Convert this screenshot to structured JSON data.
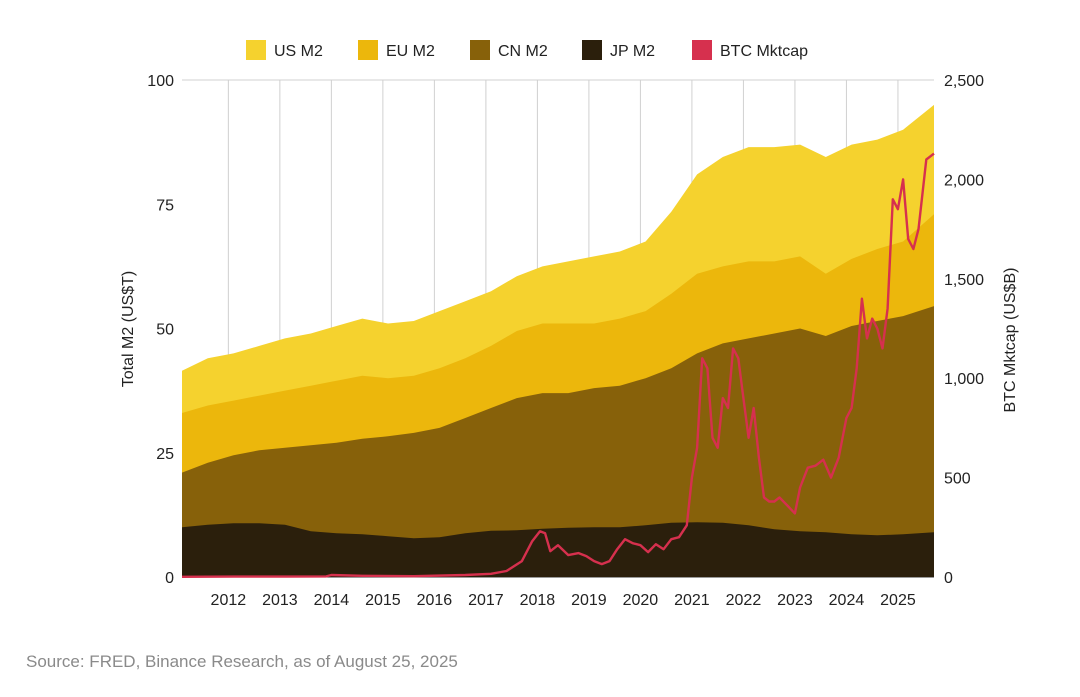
{
  "source": "Source: FRED, Binance Research, as of August 25, 2025",
  "chart_data": {
    "type": "area",
    "stacked": true,
    "xlim": [
      2011.0,
      2025.6
    ],
    "ylim": [
      0,
      100
    ],
    "y2lim": [
      0,
      2500
    ],
    "ylabel": "Total M2 (US$T)",
    "y2label": "BTC Mktcap (US$B)",
    "xticks": [
      "2012",
      "2013",
      "2014",
      "2015",
      "2016",
      "2017",
      "2018",
      "2019",
      "2020",
      "2021",
      "2022",
      "2023",
      "2024",
      "2025"
    ],
    "xtick_values": [
      2011.9,
      2012.9,
      2013.9,
      2014.9,
      2015.9,
      2016.9,
      2017.9,
      2018.9,
      2019.9,
      2020.9,
      2021.9,
      2022.9,
      2023.9,
      2024.9
    ],
    "yticks": [
      "0",
      "25",
      "50",
      "75",
      "100"
    ],
    "ytick_values": [
      0,
      25,
      50,
      75,
      100
    ],
    "y2ticks": [
      "0",
      "500",
      "1,000",
      "1,500",
      "2,000",
      "2,500"
    ],
    "y2tick_values": [
      0,
      500,
      1000,
      1500,
      2000,
      2500
    ],
    "grid": "vertical",
    "legend": "top",
    "legend_items": [
      {
        "name": "US M2",
        "color": "#F5D22E"
      },
      {
        "name": "EU M2",
        "color": "#ECB70C"
      },
      {
        "name": "CN M2",
        "color": "#87610A"
      },
      {
        "name": "JP M2",
        "color": "#2B1F0C"
      },
      {
        "name": "BTC Mktcap",
        "color": "#D6304E"
      }
    ],
    "x": [
      2011.0,
      2011.5,
      2012.0,
      2012.5,
      2013.0,
      2013.5,
      2014.0,
      2014.5,
      2015.0,
      2015.5,
      2016.0,
      2016.5,
      2017.0,
      2017.5,
      2018.0,
      2018.5,
      2019.0,
      2019.5,
      2020.0,
      2020.5,
      2021.0,
      2021.5,
      2022.0,
      2022.5,
      2023.0,
      2023.5,
      2024.0,
      2024.5,
      2025.0,
      2025.6
    ],
    "series": [
      {
        "name": "JP M2",
        "color": "#2B1F0C",
        "axis": "left",
        "values": [
          10.0,
          10.5,
          10.8,
          10.8,
          10.5,
          9.2,
          8.8,
          8.6,
          8.2,
          7.8,
          8.0,
          8.8,
          9.3,
          9.4,
          9.7,
          9.9,
          10.0,
          10.0,
          10.4,
          10.9,
          11.0,
          10.9,
          10.4,
          9.6,
          9.2,
          9.0,
          8.6,
          8.4,
          8.6,
          9.0
        ]
      },
      {
        "name": "CN M2",
        "color": "#87610A",
        "axis": "left",
        "values": [
          21.0,
          23.0,
          24.5,
          25.5,
          26.0,
          26.5,
          27.0,
          27.8,
          28.3,
          29.0,
          30.0,
          32.0,
          34.0,
          36.0,
          37.0,
          37.0,
          38.0,
          38.5,
          40.0,
          42.0,
          45.0,
          47.0,
          48.0,
          49.0,
          50.0,
          48.5,
          50.5,
          51.5,
          52.5,
          54.5
        ]
      },
      {
        "name": "EU M2",
        "color": "#ECB70C",
        "axis": "left",
        "values": [
          33.0,
          34.5,
          35.5,
          36.5,
          37.5,
          38.5,
          39.5,
          40.5,
          40.0,
          40.5,
          42.0,
          44.0,
          46.5,
          49.5,
          51.0,
          51.0,
          51.0,
          52.0,
          53.5,
          57.0,
          61.0,
          62.5,
          63.5,
          63.5,
          64.5,
          61.0,
          64.0,
          66.0,
          67.5,
          73.0
        ]
      },
      {
        "name": "US M2",
        "color": "#F5D22E",
        "axis": "left",
        "values": [
          41.5,
          44.0,
          45.0,
          46.5,
          48.0,
          49.0,
          50.5,
          52.0,
          51.0,
          51.5,
          53.5,
          55.5,
          57.5,
          60.5,
          62.5,
          63.5,
          64.5,
          65.5,
          67.5,
          73.5,
          81.0,
          84.5,
          86.5,
          86.5,
          87.0,
          84.5,
          87.0,
          88.0,
          90.0,
          95.0
        ]
      },
      {
        "name": "BTC Mktcap",
        "color": "#D6304E",
        "axis": "right",
        "x": [
          2011.0,
          2012.0,
          2013.0,
          2013.8,
          2013.9,
          2014.5,
          2015.5,
          2016.5,
          2017.0,
          2017.3,
          2017.6,
          2017.8,
          2017.95,
          2018.05,
          2018.15,
          2018.3,
          2018.5,
          2018.7,
          2018.85,
          2019.0,
          2019.15,
          2019.3,
          2019.45,
          2019.6,
          2019.75,
          2019.9,
          2020.05,
          2020.2,
          2020.35,
          2020.5,
          2020.65,
          2020.8,
          2020.9,
          2021.0,
          2021.1,
          2021.2,
          2021.3,
          2021.4,
          2021.5,
          2021.6,
          2021.7,
          2021.8,
          2021.9,
          2022.0,
          2022.1,
          2022.2,
          2022.3,
          2022.4,
          2022.5,
          2022.6,
          2022.75,
          2022.9,
          2023.0,
          2023.15,
          2023.3,
          2023.45,
          2023.6,
          2023.75,
          2023.9,
          2024.0,
          2024.1,
          2024.2,
          2024.3,
          2024.4,
          2024.5,
          2024.6,
          2024.7,
          2024.8,
          2024.9,
          2025.0,
          2025.1,
          2025.2,
          2025.3,
          2025.45,
          2025.6
        ],
        "values": [
          1,
          2,
          2,
          3,
          10,
          6,
          4,
          10,
          16,
          30,
          80,
          180,
          230,
          220,
          130,
          160,
          110,
          120,
          105,
          80,
          65,
          80,
          140,
          190,
          170,
          160,
          125,
          165,
          140,
          190,
          200,
          260,
          500,
          650,
          1100,
          1050,
          700,
          650,
          900,
          850,
          1150,
          1100,
          900,
          700,
          850,
          600,
          400,
          380,
          380,
          400,
          360,
          320,
          450,
          550,
          560,
          590,
          500,
          600,
          800,
          850,
          1050,
          1400,
          1200,
          1300,
          1250,
          1150,
          1350,
          1900,
          1850,
          2000,
          1700,
          1650,
          1750,
          2100,
          2130
        ]
      }
    ]
  }
}
